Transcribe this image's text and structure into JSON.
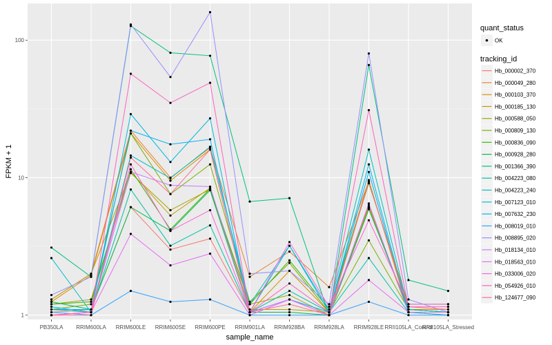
{
  "chart_data": {
    "type": "line",
    "xlabel": "sample_name",
    "ylabel": "FPKM + 1",
    "y_scale": "log10",
    "ylim": [
      0.93,
      185
    ],
    "y_ticks": [
      1,
      10,
      100
    ],
    "y_tick_labels": [
      "1",
      "10",
      "100"
    ],
    "grid": true,
    "legend_position": "right",
    "categories": [
      "PB350LA",
      "RRIM600LA",
      "RRIM600LE",
      "RRIM600SE",
      "RRIM600PE",
      "RRIM901LA",
      "RRIM928BA",
      "RRIM928LA",
      "RRIM928LE",
      "RRII105LA_Control",
      "RRII105LA_Stressed"
    ],
    "legend_shape": {
      "title": "quant_status",
      "entries": [
        {
          "label": "OK"
        }
      ]
    },
    "legend_color": {
      "title": "tracking_id"
    },
    "series": [
      {
        "name": "Hb_000002_370",
        "color": "#F8766D",
        "values": [
          1.05,
          1.1,
          6.1,
          3.0,
          3.6,
          1.05,
          1.3,
          1.0,
          6.3,
          1.05,
          1.05
        ]
      },
      {
        "name": "Hb_000049_280",
        "color": "#EA8331",
        "values": [
          1.3,
          2.0,
          22.0,
          10.0,
          16.5,
          1.9,
          2.9,
          1.6,
          9.4,
          1.1,
          1.05
        ]
      },
      {
        "name": "Hb_000103_370",
        "color": "#D89000",
        "values": [
          1.25,
          1.95,
          21.0,
          9.5,
          16.0,
          1.05,
          2.1,
          1.05,
          9.6,
          1.05,
          1.05
        ]
      },
      {
        "name": "Hb_000185_130",
        "color": "#C09B00",
        "values": [
          1.3,
          2.0,
          11.0,
          5.3,
          8.4,
          1.1,
          1.1,
          1.05,
          6.0,
          1.1,
          1.1
        ]
      },
      {
        "name": "Hb_000588_050",
        "color": "#A3A500",
        "values": [
          1.2,
          1.3,
          10.8,
          5.8,
          8.2,
          1.2,
          1.4,
          1.0,
          6.1,
          1.05,
          1.0
        ]
      },
      {
        "name": "Hb_000809_130",
        "color": "#7CAE00",
        "values": [
          1.1,
          1.2,
          21.0,
          7.6,
          12.5,
          1.25,
          2.4,
          1.05,
          3.5,
          1.1,
          1.05
        ]
      },
      {
        "name": "Hb_000836_090",
        "color": "#39B600",
        "values": [
          1.2,
          1.25,
          11.5,
          4.2,
          8.3,
          1.2,
          2.5,
          1.1,
          9.1,
          1.2,
          1.2
        ]
      },
      {
        "name": "Hb_000928_280",
        "color": "#00BB4E",
        "values": [
          1.25,
          1.1,
          6.1,
          4.1,
          8.1,
          1.05,
          1.05,
          1.0,
          5.9,
          1.1,
          1.05
        ]
      },
      {
        "name": "Hb_001366_390",
        "color": "#00BF7D",
        "values": [
          3.1,
          1.9,
          127.0,
          81.0,
          77.0,
          6.7,
          7.1,
          1.0,
          66.0,
          1.8,
          1.5
        ]
      },
      {
        "name": "Hb_004223_080",
        "color": "#00C1A3",
        "values": [
          1.1,
          1.05,
          8.2,
          3.2,
          4.5,
          1.05,
          1.5,
          1.05,
          2.6,
          1.05,
          1.05
        ]
      },
      {
        "name": "Hb_004223_240",
        "color": "#00BFC4",
        "values": [
          2.6,
          1.05,
          14.5,
          9.9,
          16.8,
          1.2,
          3.2,
          1.1,
          16.0,
          1.1,
          1.05
        ]
      },
      {
        "name": "Hb_007123_010",
        "color": "#00BAE0",
        "values": [
          1.15,
          1.05,
          29.0,
          13.0,
          27.0,
          1.05,
          3.2,
          1.05,
          12.5,
          1.05,
          1.0
        ]
      },
      {
        "name": "Hb_007632_230",
        "color": "#00B0F6",
        "values": [
          1.1,
          1.1,
          22.0,
          17.5,
          19.0,
          1.05,
          1.3,
          1.05,
          11.0,
          1.05,
          1.05
        ]
      },
      {
        "name": "Hb_008019_010",
        "color": "#35A2FF",
        "values": [
          1.05,
          1.0,
          1.5,
          1.25,
          1.3,
          1.0,
          1.0,
          1.0,
          1.25,
          1.0,
          1.0
        ]
      },
      {
        "name": "Hb_008895_020",
        "color": "#9590FF",
        "values": [
          1.4,
          1.9,
          130.0,
          54.0,
          160.0,
          2.0,
          2.1,
          1.2,
          80.0,
          1.3,
          1.05
        ]
      },
      {
        "name": "Hb_018134_010",
        "color": "#C77CFF",
        "values": [
          1.0,
          1.05,
          11.0,
          8.8,
          8.6,
          1.05,
          1.3,
          1.0,
          6.5,
          1.05,
          1.05
        ]
      },
      {
        "name": "Hb_018563_010",
        "color": "#E76BF3",
        "values": [
          1.0,
          1.05,
          3.9,
          2.3,
          2.8,
          1.0,
          1.3,
          1.0,
          1.8,
          1.05,
          1.05
        ]
      },
      {
        "name": "Hb_033006_020",
        "color": "#FA62DB",
        "values": [
          1.0,
          1.05,
          12.5,
          4.1,
          5.8,
          1.05,
          3.4,
          1.15,
          4.9,
          1.2,
          1.2
        ]
      },
      {
        "name": "Hb_054926_010",
        "color": "#FF62BC",
        "values": [
          1.0,
          1.05,
          57.0,
          35.0,
          49.0,
          1.05,
          1.7,
          1.05,
          31.0,
          1.15,
          1.15
        ]
      },
      {
        "name": "Hb_124677_090",
        "color": "#FF6C91",
        "values": [
          1.0,
          1.0,
          14.0,
          7.6,
          16.0,
          1.05,
          1.2,
          1.0,
          9.3,
          1.15,
          1.1
        ]
      }
    ]
  }
}
